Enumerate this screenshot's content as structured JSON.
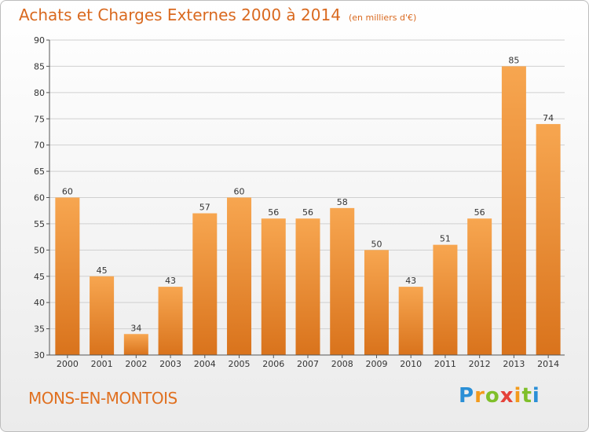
{
  "header": {
    "title": "Achats et Charges Externes 2000 à 2014",
    "unit": "(en milliers d'€)"
  },
  "footer": {
    "city": "MONS-EN-MONTOIS",
    "logo": "Proxiti"
  },
  "colors": {
    "bar_light": "#f7a650",
    "bar_dark": "#d9731c",
    "title": "#d9691f",
    "grid": "#d0d0d0"
  },
  "chart_data": {
    "type": "bar",
    "title": "Achats et Charges Externes 2000 à 2014",
    "subtitle": "(en milliers d'€)",
    "xlabel": "",
    "ylabel": "",
    "categories": [
      "2000",
      "2001",
      "2002",
      "2003",
      "2004",
      "2005",
      "2006",
      "2007",
      "2008",
      "2009",
      "2010",
      "2011",
      "2012",
      "2013",
      "2014"
    ],
    "values": [
      60,
      45,
      34,
      43,
      57,
      60,
      56,
      56,
      58,
      50,
      43,
      51,
      56,
      85,
      74
    ],
    "ylim": [
      30,
      90
    ],
    "yticks": [
      30,
      35,
      40,
      45,
      50,
      55,
      60,
      65,
      70,
      75,
      80,
      85,
      90
    ],
    "grid": true,
    "data_labels": true
  }
}
